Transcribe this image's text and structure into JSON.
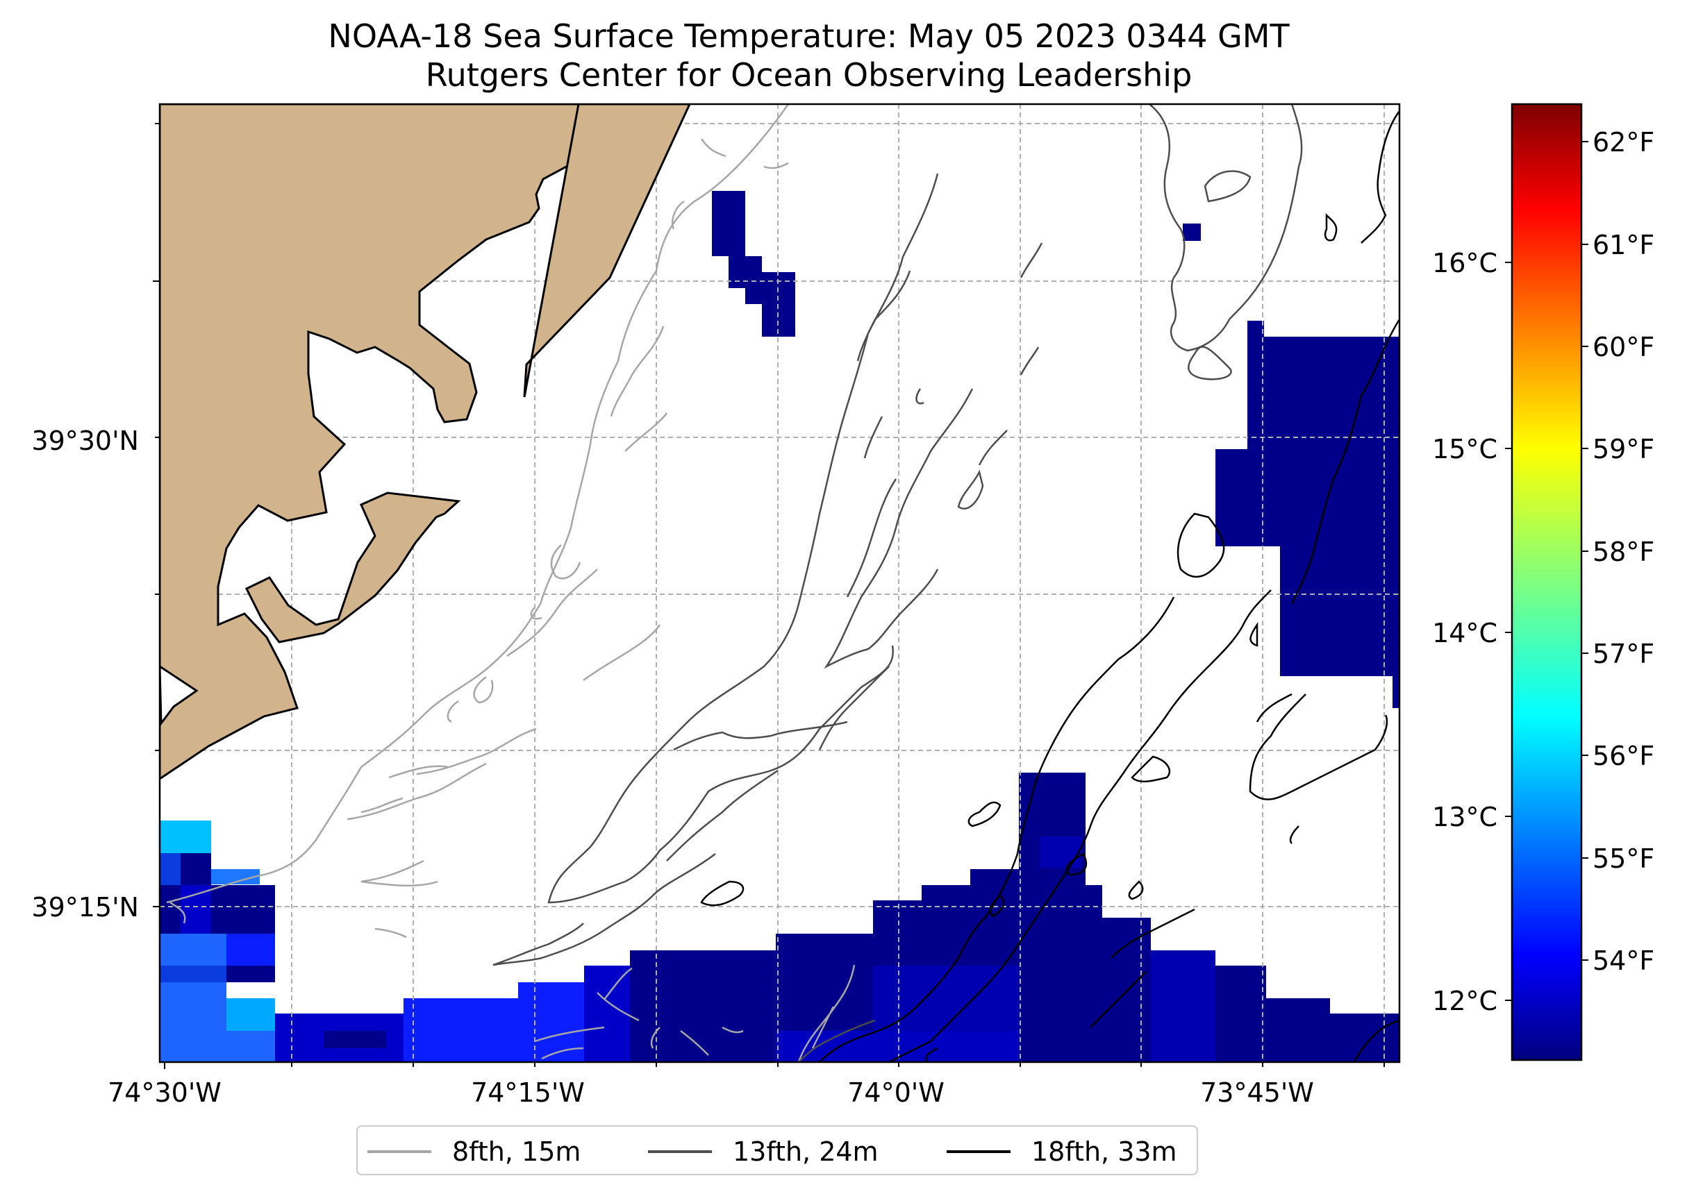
{
  "title": "NOAA-18 Sea Surface Temperature: May 05 2023 0344 GMT",
  "subtitle": "Rutgers Center for Ocean Observing Leadership",
  "x_ticks": [
    "74°30'W",
    "74°15'W",
    "74°0'W",
    "73°45'W"
  ],
  "y_ticks": [
    "39°30'N",
    "39°15'N"
  ],
  "colorbar": {
    "celsius_ticks": [
      "16°C",
      "15°C",
      "14°C",
      "13°C",
      "12°C"
    ],
    "fahrenheit_ticks": [
      "62°F",
      "61°F",
      "60°F",
      "59°F",
      "58°F",
      "57°F",
      "56°F",
      "55°F",
      "54°F"
    ],
    "colors": [
      "#00007f",
      "#0000ff",
      "#007fff",
      "#00ffff",
      "#7fff7f",
      "#ffff00",
      "#ff7f00",
      "#ff0000",
      "#7f0000"
    ]
  },
  "legend": [
    {
      "label": "8fth, 15m",
      "color": "#a6a6a6"
    },
    {
      "label": "13fth, 24m",
      "color": "#4d4d4d"
    },
    {
      "label": "18fth, 33m",
      "color": "#000000"
    }
  ],
  "colors": {
    "land": "#d2b48c",
    "grid": "#b0b0b0"
  }
}
